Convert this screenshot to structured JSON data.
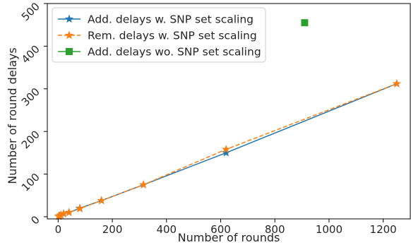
{
  "chart_data": {
    "type": "line",
    "title": "",
    "xlabel": "Number of rounds",
    "ylabel": "Number of round delays",
    "xlim": [
      -40,
      1300
    ],
    "ylim": [
      -5,
      500
    ],
    "xticks": [
      0,
      200,
      400,
      600,
      800,
      1000,
      1200
    ],
    "yticks": [
      0,
      100,
      200,
      300,
      400,
      500
    ],
    "grid": false,
    "legend_position": "top-left",
    "series": [
      {
        "name": "Add. delays w. SNP set scaling",
        "color": "#1f77b4",
        "line_style": "solid",
        "marker": "star",
        "x": [
          2,
          5,
          10,
          20,
          40,
          80,
          160,
          315,
          620,
          1250
        ],
        "y": [
          1,
          2,
          4,
          7,
          10,
          20,
          38,
          75,
          150,
          312
        ]
      },
      {
        "name": "Rem. delays w. SNP set scaling",
        "color": "#ff7f0e",
        "line_style": "dashed",
        "marker": "star",
        "x": [
          2,
          5,
          10,
          20,
          40,
          80,
          160,
          315,
          620,
          1250
        ],
        "y": [
          1,
          2,
          4,
          7,
          10,
          19,
          38,
          75,
          158,
          312
        ]
      },
      {
        "name": "Add. delays wo. SNP set scaling",
        "color": "#2ca02c",
        "line_style": "solid",
        "marker": "square",
        "x": [
          910
        ],
        "y": [
          455
        ]
      }
    ]
  }
}
